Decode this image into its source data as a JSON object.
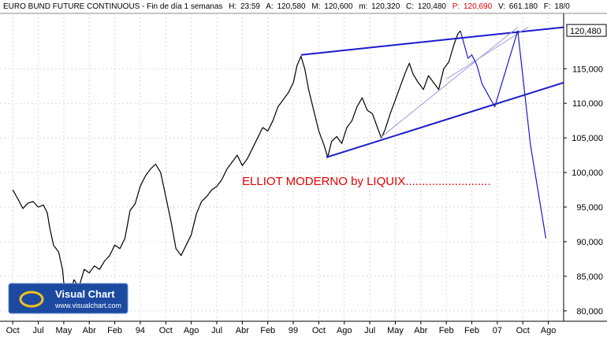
{
  "header": {
    "title": "EURO BUND FUTURE CONTINUOUS - Fin de día 1 semanas",
    "h_label": "H:",
    "h_value": "23:59",
    "a_label": "A:",
    "a_value": "120,580",
    "m_label": "M:",
    "m_value": "120,600",
    "mm_label": "m:",
    "mm_value": "120,320",
    "c_label": "C:",
    "c_value": "120,480",
    "p_label": "P:",
    "p_value": "120,690",
    "v_label": "V:",
    "v_value": "661.180",
    "f_label": "F:",
    "f_value": "18/0"
  },
  "annotation": "ELLIOT MODERNO by LIQUIX..........................",
  "watermark": {
    "title": "Visual Chart",
    "url": "www.visualchart.com"
  },
  "colors": {
    "price": "#000000",
    "channel": "#1a1acc",
    "fan": "#9999dd",
    "projection": "#1a1acc",
    "annotation": "#e00000",
    "last_price_box": "#000000"
  },
  "chart_data": {
    "type": "line",
    "title": "EURO BUND FUTURE CONTINUOUS",
    "ylim": [
      78.5,
      123
    ],
    "y_ticks": [
      80,
      85,
      90,
      95,
      100,
      105,
      110,
      115
    ],
    "y_tick_labels": [
      "80,000",
      "85,000",
      "90,000",
      "95,000",
      "100,000",
      "105,000",
      "110,000",
      "115,000"
    ],
    "last_price_label": "120,480",
    "last_price": 120.48,
    "x_tick_labels": [
      "Oct",
      "Jul",
      "May",
      "Abr",
      "Feb",
      "94",
      "Oct",
      "Ago",
      "Jul",
      "Abr",
      "Feb",
      "99",
      "Oct",
      "Ago",
      "Jul",
      "May",
      "Abr",
      "Feb",
      "Feb",
      "07",
      "Oct",
      "Ago"
    ],
    "x_ticks": [
      0,
      1,
      2,
      3,
      4,
      5,
      6,
      7,
      8,
      9,
      10,
      11,
      12,
      13,
      14,
      15,
      16,
      17,
      18,
      19,
      20,
      21
    ],
    "xlim": [
      -0.5,
      21.6
    ],
    "series": [
      {
        "values": [
          {
            "x": 0.0,
            "y": 97.5
          },
          {
            "x": 0.2,
            "y": 96.2
          },
          {
            "x": 0.4,
            "y": 94.8
          },
          {
            "x": 0.6,
            "y": 95.6
          },
          {
            "x": 0.8,
            "y": 95.8
          },
          {
            "x": 1.0,
            "y": 95.0
          },
          {
            "x": 1.2,
            "y": 95.3
          },
          {
            "x": 1.35,
            "y": 94.2
          },
          {
            "x": 1.45,
            "y": 92.0
          },
          {
            "x": 1.6,
            "y": 89.5
          },
          {
            "x": 1.8,
            "y": 88.5
          },
          {
            "x": 1.95,
            "y": 86.0
          },
          {
            "x": 2.05,
            "y": 82.2
          },
          {
            "x": 2.2,
            "y": 81.8
          },
          {
            "x": 2.4,
            "y": 84.5
          },
          {
            "x": 2.6,
            "y": 83.5
          },
          {
            "x": 2.8,
            "y": 86.0
          },
          {
            "x": 3.0,
            "y": 85.5
          },
          {
            "x": 3.2,
            "y": 86.5
          },
          {
            "x": 3.4,
            "y": 86.0
          },
          {
            "x": 3.6,
            "y": 87.2
          },
          {
            "x": 3.8,
            "y": 88.0
          },
          {
            "x": 4.0,
            "y": 89.5
          },
          {
            "x": 4.2,
            "y": 89.0
          },
          {
            "x": 4.4,
            "y": 90.5
          },
          {
            "x": 4.6,
            "y": 94.5
          },
          {
            "x": 4.8,
            "y": 95.5
          },
          {
            "x": 5.0,
            "y": 98.0
          },
          {
            "x": 5.2,
            "y": 99.5
          },
          {
            "x": 5.4,
            "y": 100.5
          },
          {
            "x": 5.6,
            "y": 101.2
          },
          {
            "x": 5.8,
            "y": 100.0
          },
          {
            "x": 6.0,
            "y": 96.5
          },
          {
            "x": 6.2,
            "y": 93.0
          },
          {
            "x": 6.4,
            "y": 89.0
          },
          {
            "x": 6.6,
            "y": 88.0
          },
          {
            "x": 6.8,
            "y": 89.5
          },
          {
            "x": 7.0,
            "y": 91.0
          },
          {
            "x": 7.2,
            "y": 94.0
          },
          {
            "x": 7.4,
            "y": 95.8
          },
          {
            "x": 7.6,
            "y": 96.5
          },
          {
            "x": 7.8,
            "y": 97.5
          },
          {
            "x": 8.0,
            "y": 98.0
          },
          {
            "x": 8.2,
            "y": 99.0
          },
          {
            "x": 8.4,
            "y": 100.5
          },
          {
            "x": 8.6,
            "y": 101.5
          },
          {
            "x": 8.8,
            "y": 102.5
          },
          {
            "x": 9.0,
            "y": 101.0
          },
          {
            "x": 9.2,
            "y": 102.0
          },
          {
            "x": 9.4,
            "y": 103.5
          },
          {
            "x": 9.6,
            "y": 105.0
          },
          {
            "x": 9.8,
            "y": 106.5
          },
          {
            "x": 10.0,
            "y": 106.0
          },
          {
            "x": 10.2,
            "y": 107.5
          },
          {
            "x": 10.4,
            "y": 109.5
          },
          {
            "x": 10.6,
            "y": 110.5
          },
          {
            "x": 10.8,
            "y": 111.5
          },
          {
            "x": 11.0,
            "y": 113.0
          },
          {
            "x": 11.15,
            "y": 115.5
          },
          {
            "x": 11.3,
            "y": 116.8
          },
          {
            "x": 11.45,
            "y": 115.0
          },
          {
            "x": 11.6,
            "y": 112.0
          },
          {
            "x": 11.8,
            "y": 109.0
          },
          {
            "x": 12.0,
            "y": 106.0
          },
          {
            "x": 12.2,
            "y": 104.0
          },
          {
            "x": 12.35,
            "y": 102.2
          },
          {
            "x": 12.5,
            "y": 104.5
          },
          {
            "x": 12.7,
            "y": 105.2
          },
          {
            "x": 12.9,
            "y": 104.2
          },
          {
            "x": 13.1,
            "y": 106.5
          },
          {
            "x": 13.3,
            "y": 107.5
          },
          {
            "x": 13.5,
            "y": 109.5
          },
          {
            "x": 13.7,
            "y": 110.8
          },
          {
            "x": 13.9,
            "y": 109.0
          },
          {
            "x": 14.1,
            "y": 108.5
          },
          {
            "x": 14.3,
            "y": 106.5
          },
          {
            "x": 14.45,
            "y": 105.0
          },
          {
            "x": 14.6,
            "y": 106.2
          },
          {
            "x": 14.8,
            "y": 108.5
          },
          {
            "x": 15.0,
            "y": 110.5
          },
          {
            "x": 15.2,
            "y": 112.5
          },
          {
            "x": 15.4,
            "y": 114.5
          },
          {
            "x": 15.55,
            "y": 115.8
          },
          {
            "x": 15.7,
            "y": 114.2
          },
          {
            "x": 15.9,
            "y": 113.0
          },
          {
            "x": 16.1,
            "y": 112.0
          },
          {
            "x": 16.3,
            "y": 114.0
          },
          {
            "x": 16.5,
            "y": 113.0
          },
          {
            "x": 16.7,
            "y": 112.0
          },
          {
            "x": 16.9,
            "y": 115.0
          },
          {
            "x": 17.1,
            "y": 116.0
          },
          {
            "x": 17.3,
            "y": 118.5
          },
          {
            "x": 17.45,
            "y": 120.0
          },
          {
            "x": 17.55,
            "y": 120.48
          }
        ]
      },
      {
        "name": "channel-upper",
        "values": [
          {
            "x": 11.3,
            "y": 117.0
          },
          {
            "x": 21.6,
            "y": 121.0
          }
        ]
      },
      {
        "name": "channel-lower",
        "values": [
          {
            "x": 12.3,
            "y": 102.2
          },
          {
            "x": 21.6,
            "y": 113.0
          }
        ]
      },
      {
        "name": "fan-line-1",
        "values": [
          {
            "x": 14.4,
            "y": 105.0
          },
          {
            "x": 19.8,
            "y": 121.0
          }
        ]
      },
      {
        "name": "fan-line-2",
        "values": [
          {
            "x": 17.0,
            "y": 113.5
          },
          {
            "x": 20.2,
            "y": 121.0
          }
        ]
      },
      {
        "name": "projection",
        "values": [
          {
            "x": 17.55,
            "y": 120.5
          },
          {
            "x": 17.85,
            "y": 116.5
          },
          {
            "x": 18.0,
            "y": 117.0
          },
          {
            "x": 18.2,
            "y": 115.5
          },
          {
            "x": 18.4,
            "y": 112.8
          },
          {
            "x": 18.9,
            "y": 109.5
          },
          {
            "x": 19.8,
            "y": 120.5
          },
          {
            "x": 20.3,
            "y": 104.0
          },
          {
            "x": 20.9,
            "y": 90.5
          }
        ]
      }
    ]
  }
}
